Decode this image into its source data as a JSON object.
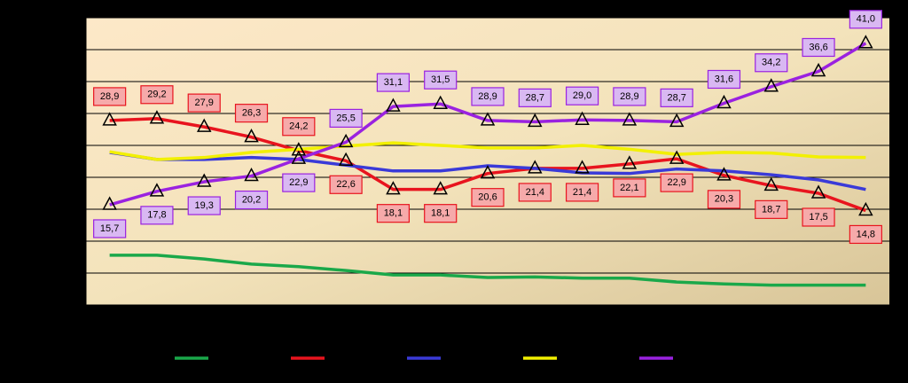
{
  "chart_data": {
    "type": "line",
    "categories": [
      null,
      null,
      null,
      null,
      null,
      null,
      null,
      null,
      null,
      null,
      null,
      null,
      null,
      null,
      null,
      null,
      null
    ],
    "series": [
      {
        "color": "#1aa84a",
        "values": [
          7.8,
          7.8,
          7.2,
          6.4,
          6.0,
          5.4,
          4.7,
          4.7,
          4.3,
          4.4,
          4.2,
          4.2,
          3.6,
          3.3,
          3.1,
          3.1,
          3.1
        ]
      },
      {
        "color": "#e8141e",
        "marker": "triangle",
        "values": [
          28.9,
          29.2,
          27.9,
          26.3,
          24.2,
          22.6,
          18.1,
          18.1,
          20.6,
          21.4,
          21.4,
          22.1,
          22.9,
          20.3,
          18.7,
          17.5,
          14.8
        ],
        "value_labels": [
          "28,9",
          "29,2",
          "27,9",
          "26,3",
          "24,2",
          "22,6",
          "18,1",
          "18,1",
          "20,6",
          "21,4",
          "21,4",
          "22,1",
          "22,9",
          "20,3",
          "18,7",
          "17,5",
          "14,8"
        ]
      },
      {
        "color": "#3a3ad8",
        "values": [
          23.9,
          22.8,
          22.8,
          23.1,
          22.8,
          21.9,
          21.0,
          21.0,
          21.8,
          21.4,
          20.7,
          20.6,
          21.3,
          21.0,
          20.4,
          19.6,
          18.1
        ]
      },
      {
        "color": "#f2f000",
        "values": [
          24.0,
          22.8,
          23.1,
          23.9,
          24.4,
          24.9,
          25.4,
          25.0,
          24.6,
          24.6,
          25.0,
          24.4,
          23.6,
          23.9,
          23.8,
          23.2,
          23.1
        ]
      },
      {
        "color": "#9a22e0",
        "marker": "triangle",
        "values": [
          15.7,
          17.8,
          19.3,
          20.2,
          22.9,
          25.5,
          31.1,
          31.5,
          28.9,
          28.7,
          29.0,
          28.9,
          28.7,
          31.6,
          34.2,
          36.6,
          41.0
        ],
        "value_labels": [
          "15,7",
          "17,8",
          "19,3",
          "20,2",
          "22,9",
          "25,5",
          "31,1",
          "31,5",
          "28,9",
          "28,7",
          "29,0",
          "28,9",
          "28,7",
          "31,6",
          "34,2",
          "36,6",
          "41,0"
        ]
      }
    ],
    "ylim": [
      0,
      45
    ],
    "yticks": [
      0,
      5,
      10,
      15,
      20,
      25,
      30,
      35,
      40,
      45
    ],
    "grid": true,
    "legend": "bottom"
  }
}
